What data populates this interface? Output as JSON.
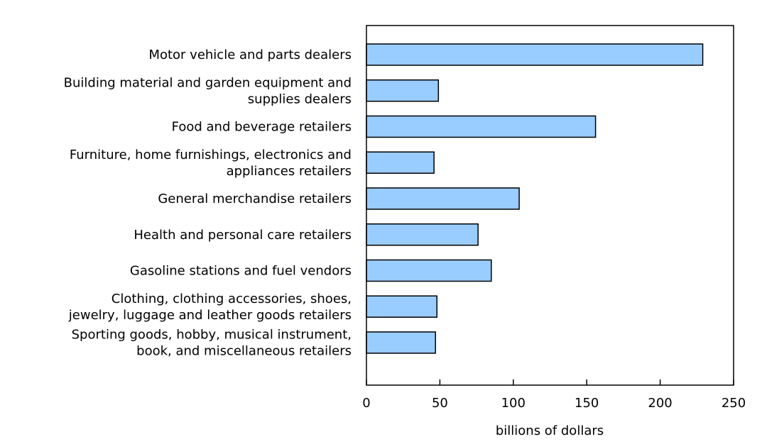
{
  "chart_data": {
    "type": "bar",
    "orientation": "horizontal",
    "categories": [
      [
        "Motor vehicle and parts dealers"
      ],
      [
        "Building material and garden equipment and",
        "supplies dealers"
      ],
      [
        "Food and beverage retailers"
      ],
      [
        "Furniture, home furnishings, electronics and",
        "appliances retailers"
      ],
      [
        "General merchandise retailers"
      ],
      [
        "Health and personal care retailers"
      ],
      [
        "Gasoline stations and fuel vendors"
      ],
      [
        "Clothing, clothing accessories, shoes,",
        "jewelry, luggage and leather goods retailers"
      ],
      [
        "Sporting goods, hobby, musical instrument,",
        "book, and miscellaneous retailers"
      ]
    ],
    "values": [
      229,
      49,
      156,
      46,
      104,
      76,
      85,
      48,
      47
    ],
    "xlabel": "billions of dollars",
    "xlim": [
      0,
      250
    ],
    "xticks": [
      0,
      50,
      100,
      150,
      200,
      250
    ],
    "xtick_labels": [
      "0",
      "50",
      "100",
      "150",
      "200",
      "250"
    ],
    "grid": false,
    "bar_color": "#99ccff",
    "bar_edge_color": "#000000"
  }
}
